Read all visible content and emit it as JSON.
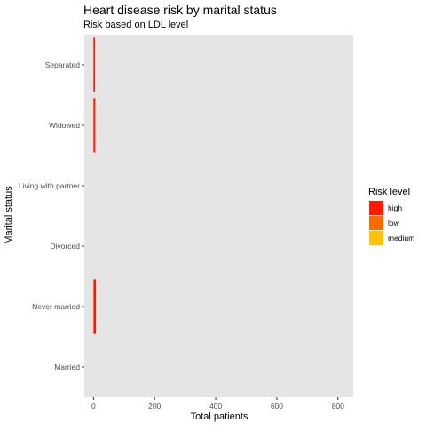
{
  "chart_data": {
    "type": "bar",
    "orientation": "horizontal",
    "stacked": true,
    "title": "Heart disease risk by marital status",
    "subtitle": "Risk based on LDL level",
    "xlabel": "Total patients",
    "ylabel": "Marital status",
    "categories": [
      "Married",
      "Never married",
      "Divorced",
      "Living with partner",
      "Widowed",
      "Separated"
    ],
    "xlim": [
      -30,
      850
    ],
    "xticks": [
      0,
      200,
      400,
      600,
      800
    ],
    "xtick_labels": [
      "0",
      "200",
      "400",
      "600",
      "800"
    ],
    "grid": false,
    "panel_background": "#e5e5e5",
    "legend": {
      "title": "Risk level",
      "position": "right",
      "entries": [
        "high",
        "low",
        "medium"
      ]
    },
    "series": [
      {
        "name": "high",
        "color": "#ff1a00",
        "values": [
          0,
          8,
          0,
          0,
          6,
          5
        ]
      },
      {
        "name": "low",
        "color": "#ff6a00",
        "values": [
          0,
          0,
          0,
          0,
          0,
          0
        ]
      },
      {
        "name": "medium",
        "color": "#ffc20a",
        "values": [
          0,
          0,
          0,
          0,
          0,
          0
        ]
      }
    ]
  }
}
